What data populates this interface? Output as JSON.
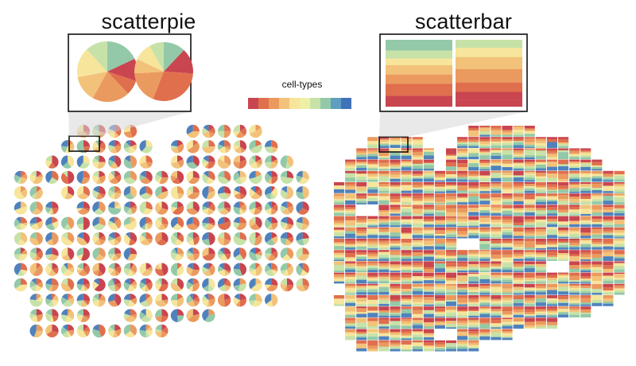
{
  "panels": {
    "left": {
      "title": "scatterpie"
    },
    "right": {
      "title": "scatterbar"
    }
  },
  "legend": {
    "title": "cell-types",
    "colors": [
      "#c9454f",
      "#e06f4e",
      "#eb9a5f",
      "#f2c27a",
      "#f6e59b",
      "#eef0a8",
      "#c7e2a8",
      "#93c9a8",
      "#5f9ec0",
      "#3f72b6"
    ]
  },
  "palette": {
    "red": "#c9454f",
    "orange": "#e06f4e",
    "tan": "#eb9a5f",
    "yellow": "#f2c27a",
    "cream": "#f6e59b",
    "lightgreen": "#c7e2a8",
    "green": "#93c9a8",
    "blue": "#4f82bd",
    "frame": "#111111"
  },
  "inset": {
    "left_pies": [
      [
        18,
        12,
        8,
        20,
        14,
        16,
        12
      ],
      [
        12,
        14,
        30,
        18,
        8,
        10,
        8
      ]
    ],
    "right_bars": [
      [
        16,
        12,
        10,
        14,
        14,
        18,
        16
      ],
      [
        12,
        14,
        18,
        20,
        14,
        12,
        10
      ]
    ]
  }
}
